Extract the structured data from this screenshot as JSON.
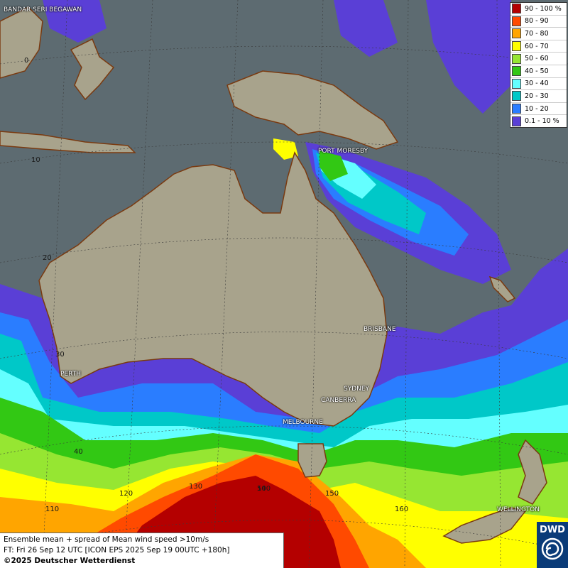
{
  "legend": {
    "title": "",
    "items": [
      {
        "label": "90 - 100 %",
        "color": "#b40000"
      },
      {
        "label": "80 - 90",
        "color": "#ff4a00"
      },
      {
        "label": "70 - 80",
        "color": "#ffa500"
      },
      {
        "label": "60 - 70",
        "color": "#ffff00"
      },
      {
        "label": "50 - 60",
        "color": "#96e632"
      },
      {
        "label": "40 - 50",
        "color": "#32c814"
      },
      {
        "label": "30 - 40",
        "color": "#64ffff"
      },
      {
        "label": "20 - 30",
        "color": "#00c8c8"
      },
      {
        "label": "10 - 20",
        "color": "#2a7dff"
      },
      {
        "label": "0.1 - 10 %",
        "color": "#5a3fd6"
      }
    ]
  },
  "cities": [
    {
      "name": "BANDAR SERI BEGAWAN"
    },
    {
      "name": "PORT MORESBY"
    },
    {
      "name": "BRISBANE"
    },
    {
      "name": "PERTH"
    },
    {
      "name": "SYDNEY"
    },
    {
      "name": "CANBERRA"
    },
    {
      "name": "MELBOURNE"
    },
    {
      "name": "WELLINGTON"
    }
  ],
  "lat_labels": [
    "0",
    "10",
    "20",
    "30",
    "40",
    "50"
  ],
  "lon_labels": [
    "110",
    "120",
    "130",
    "140",
    "150",
    "160"
  ],
  "info": {
    "line1": "Ensemble mean + spread of Mean wind speed >10m/s",
    "line2": "FT: Fri 26 Sep 12 UTC [ICON EPS 2025 Sep 19 00UTC +180h]",
    "copyright": "©2025 Deutscher Wetterdienst"
  },
  "logo": {
    "text": "DWD"
  }
}
